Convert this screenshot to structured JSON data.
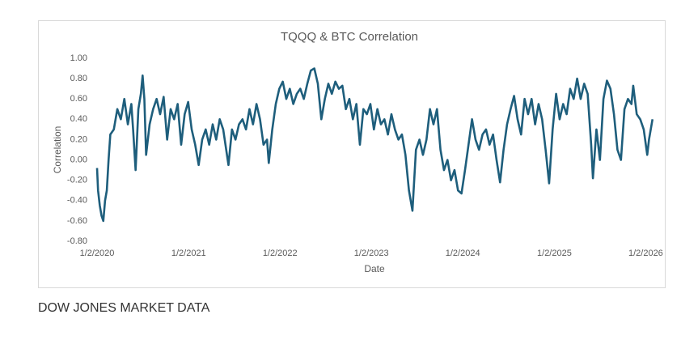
{
  "chart_data": {
    "type": "line",
    "title": "TQQQ & BTC Correlation",
    "x_label": "Date",
    "y_label": "Correlation",
    "x": [
      "2020-01-02",
      "2020-01-06",
      "2020-01-13",
      "2020-01-20",
      "2020-01-27",
      "2020-02-03",
      "2020-02-10",
      "2020-02-17",
      "2020-02-24",
      "2020-03-09",
      "2020-03-23",
      "2020-04-06",
      "2020-04-20",
      "2020-05-04",
      "2020-05-18",
      "2020-05-25",
      "2020-06-04",
      "2020-06-15",
      "2020-06-25",
      "2020-07-02",
      "2020-07-09",
      "2020-07-16",
      "2020-07-30",
      "2020-08-13",
      "2020-08-27",
      "2020-09-10",
      "2020-09-24",
      "2020-10-08",
      "2020-10-22",
      "2020-11-05",
      "2020-11-19",
      "2020-12-03",
      "2020-12-17",
      "2020-12-31",
      "2021-01-14",
      "2021-01-28",
      "2021-02-11",
      "2021-02-25",
      "2021-03-11",
      "2021-03-25",
      "2021-04-08",
      "2021-04-22",
      "2021-05-06",
      "2021-05-20",
      "2021-06-10",
      "2021-06-24",
      "2021-07-08",
      "2021-07-22",
      "2021-08-05",
      "2021-08-19",
      "2021-09-02",
      "2021-09-16",
      "2021-09-30",
      "2021-10-14",
      "2021-10-28",
      "2021-11-11",
      "2021-11-18",
      "2021-12-02",
      "2021-12-16",
      "2021-12-30",
      "2022-01-13",
      "2022-01-27",
      "2022-02-10",
      "2022-02-24",
      "2022-03-10",
      "2022-03-24",
      "2022-04-07",
      "2022-04-21",
      "2022-05-05",
      "2022-05-19",
      "2022-06-02",
      "2022-06-16",
      "2022-06-30",
      "2022-07-14",
      "2022-07-28",
      "2022-08-11",
      "2022-08-25",
      "2022-09-08",
      "2022-09-22",
      "2022-10-06",
      "2022-10-20",
      "2022-11-03",
      "2022-11-17",
      "2022-12-01",
      "2022-12-15",
      "2022-12-29",
      "2023-01-12",
      "2023-01-26",
      "2023-02-09",
      "2023-02-23",
      "2023-03-09",
      "2023-03-23",
      "2023-04-06",
      "2023-04-20",
      "2023-05-04",
      "2023-05-18",
      "2023-06-01",
      "2023-06-15",
      "2023-06-29",
      "2023-07-13",
      "2023-07-27",
      "2023-08-10",
      "2023-08-24",
      "2023-09-07",
      "2023-09-21",
      "2023-10-05",
      "2023-10-19",
      "2023-11-02",
      "2023-11-16",
      "2023-11-30",
      "2023-12-14",
      "2023-12-28",
      "2024-01-11",
      "2024-01-25",
      "2024-02-08",
      "2024-02-22",
      "2024-03-07",
      "2024-03-21",
      "2024-04-04",
      "2024-04-18",
      "2024-05-02",
      "2024-05-16",
      "2024-05-30",
      "2024-06-13",
      "2024-06-27",
      "2024-07-11",
      "2024-07-25",
      "2024-08-08",
      "2024-08-22",
      "2024-09-05",
      "2024-09-19",
      "2024-10-03",
      "2024-10-17",
      "2024-10-31",
      "2024-11-14",
      "2024-11-28",
      "2024-12-12",
      "2024-12-26",
      "2025-01-09",
      "2025-01-23",
      "2025-02-06",
      "2025-02-20",
      "2025-03-06",
      "2025-03-20",
      "2025-04-03",
      "2025-04-17",
      "2025-05-01",
      "2025-05-15",
      "2025-05-29",
      "2025-06-05",
      "2025-06-19",
      "2025-07-03",
      "2025-07-17",
      "2025-07-31",
      "2025-08-14",
      "2025-08-28",
      "2025-09-11",
      "2025-09-25",
      "2025-10-09",
      "2025-10-23",
      "2025-11-06",
      "2025-11-13",
      "2025-11-27",
      "2025-12-11",
      "2025-12-25",
      "2026-01-08",
      "2026-01-15",
      "2026-01-29"
    ],
    "series": [
      {
        "name": "Correlation",
        "color": "#1e5e7c",
        "values": [
          -0.08,
          -0.3,
          -0.45,
          -0.55,
          -0.6,
          -0.4,
          -0.3,
          0,
          0.25,
          0.3,
          0.5,
          0.4,
          0.6,
          0.35,
          0.55,
          0.3,
          -0.1,
          0.5,
          0.65,
          0.83,
          0.6,
          0.05,
          0.35,
          0.5,
          0.6,
          0.45,
          0.62,
          0.2,
          0.5,
          0.4,
          0.55,
          0.15,
          0.45,
          0.57,
          0.3,
          0.15,
          -0.05,
          0.2,
          0.3,
          0.15,
          0.35,
          0.2,
          0.4,
          0.3,
          -0.05,
          0.3,
          0.2,
          0.35,
          0.4,
          0.3,
          0.5,
          0.35,
          0.55,
          0.4,
          0.15,
          0.2,
          -0.03,
          0.3,
          0.55,
          0.7,
          0.77,
          0.6,
          0.7,
          0.55,
          0.65,
          0.7,
          0.6,
          0.75,
          0.88,
          0.9,
          0.75,
          0.4,
          0.6,
          0.75,
          0.65,
          0.77,
          0.7,
          0.73,
          0.5,
          0.6,
          0.4,
          0.55,
          0.15,
          0.5,
          0.45,
          0.55,
          0.3,
          0.5,
          0.35,
          0.4,
          0.25,
          0.45,
          0.3,
          0.2,
          0.25,
          0.05,
          -0.3,
          -0.5,
          0.1,
          0.2,
          0.05,
          0.2,
          0.5,
          0.35,
          0.5,
          0.1,
          -0.1,
          0,
          -0.2,
          -0.1,
          -0.3,
          -0.33,
          -0.1,
          0.15,
          0.4,
          0.2,
          0.1,
          0.25,
          0.3,
          0.15,
          0.25,
          0,
          -0.22,
          0.1,
          0.35,
          0.5,
          0.63,
          0.4,
          0.25,
          0.6,
          0.45,
          0.6,
          0.35,
          0.55,
          0.4,
          0.1,
          -0.23,
          0.3,
          0.65,
          0.4,
          0.55,
          0.45,
          0.7,
          0.6,
          0.8,
          0.6,
          0.75,
          0.65,
          0.15,
          -0.18,
          0.3,
          0,
          0.6,
          0.78,
          0.7,
          0.45,
          0.1,
          0,
          0.5,
          0.6,
          0.55,
          0.73,
          0.45,
          0.4,
          0.3,
          0.05,
          0.2,
          0.4
        ]
      }
    ],
    "xlim": [
      "2020-01-02",
      "2026-02-02"
    ],
    "xticks": [
      {
        "value": "2020-01-02",
        "label": "1/2/2020"
      },
      {
        "value": "2021-01-02",
        "label": "1/2/2021"
      },
      {
        "value": "2022-01-02",
        "label": "1/2/2022"
      },
      {
        "value": "2023-01-02",
        "label": "1/2/2023"
      },
      {
        "value": "2024-01-02",
        "label": "1/2/2024"
      },
      {
        "value": "2025-01-02",
        "label": "1/2/2025"
      },
      {
        "value": "2026-01-02",
        "label": "1/2/2026"
      }
    ],
    "ylim": [
      -0.8,
      1.0
    ],
    "yticks": [
      {
        "value": -0.8,
        "label": "-0.80"
      },
      {
        "value": -0.6,
        "label": "-0.60"
      },
      {
        "value": -0.4,
        "label": "-0.40"
      },
      {
        "value": -0.2,
        "label": "-0.20"
      },
      {
        "value": 0,
        "label": "0.00"
      },
      {
        "value": 0.2,
        "label": "0.20"
      },
      {
        "value": 0.4,
        "label": "0.40"
      },
      {
        "value": 0.6,
        "label": "0.60"
      },
      {
        "value": 0.8,
        "label": "0.80"
      },
      {
        "value": 1.0,
        "label": "1.00"
      }
    ],
    "grid": false
  },
  "caption": "DOW JONES MARKET DATA"
}
